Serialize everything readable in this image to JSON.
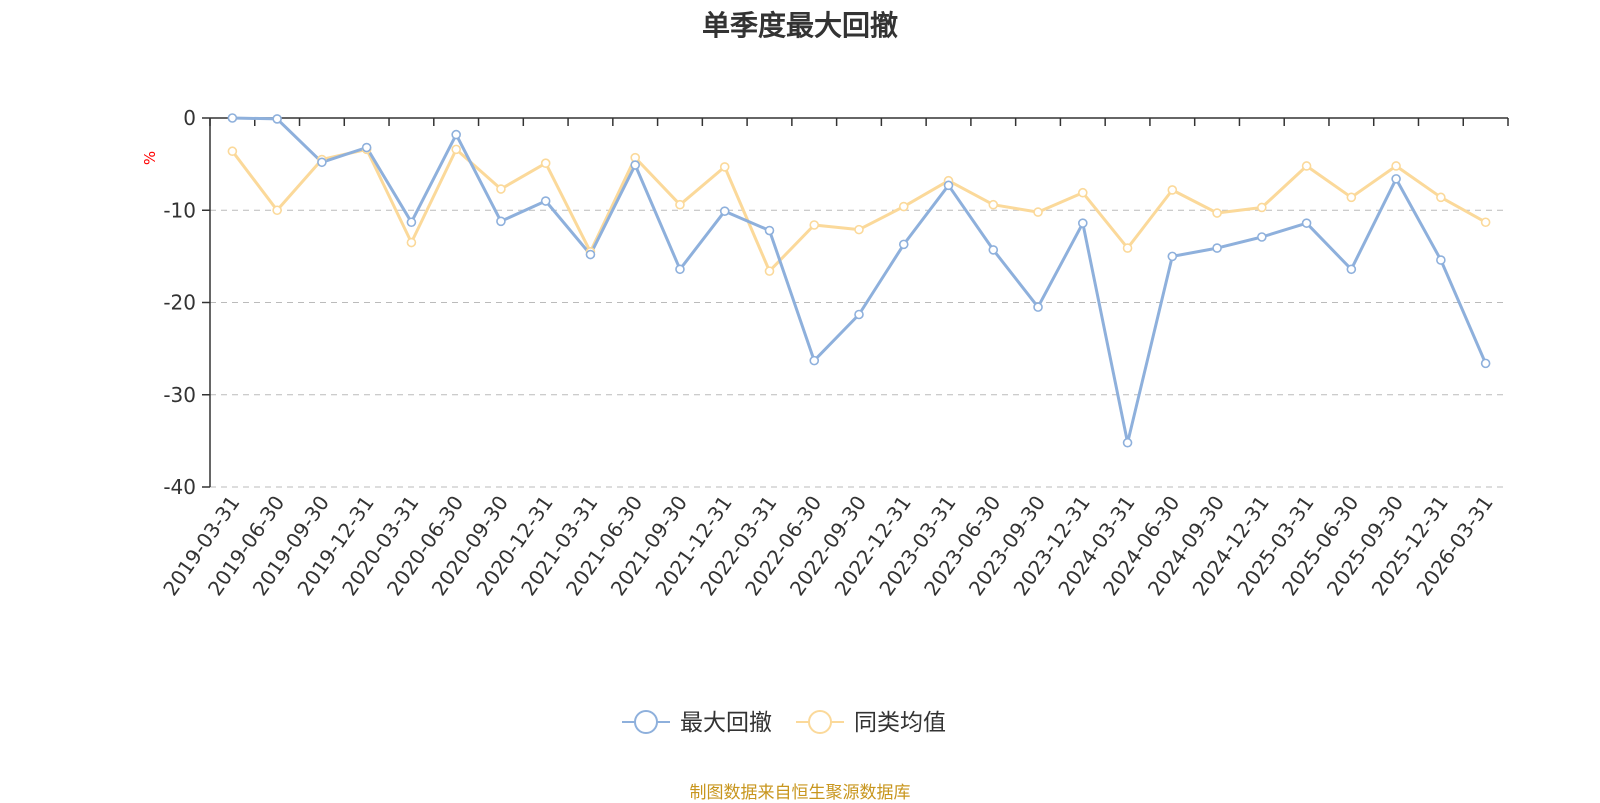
{
  "colors": {
    "series_1": "#8eb0dc",
    "series_2": "#fbd99a",
    "unit": "#ff0000",
    "source": "#c8961e",
    "grid": "#bbbbbb"
  },
  "source_text": "制图数据来自恒生聚源数据库",
  "chart_data": {
    "type": "line",
    "title": "单季度最大回撤",
    "ylabel": "%",
    "xlabel": "",
    "ylim": [
      -40,
      0
    ],
    "yticks": [
      0,
      -10,
      -20,
      -30,
      -40
    ],
    "grid": "dashed horizontal",
    "legend_position": "bottom-center",
    "categories": [
      "2019-03-31",
      "2019-06-30",
      "2019-09-30",
      "2019-12-31",
      "2020-03-31",
      "2020-06-30",
      "2020-09-30",
      "2020-12-31",
      "2021-03-31",
      "2021-06-30",
      "2021-09-30",
      "2021-12-31",
      "2022-03-31",
      "2022-06-30",
      "2022-09-30",
      "2022-12-31",
      "2023-03-31",
      "2023-06-30",
      "2023-09-30",
      "2023-12-31",
      "2024-03-31",
      "2024-06-30",
      "2024-09-30",
      "2024-12-31",
      "2025-03-31",
      "2025-06-30",
      "2025-09-30",
      "2025-12-31",
      "2026-03-31"
    ],
    "series": [
      {
        "name": "最大回撤",
        "values": [
          0,
          -0.1,
          -4.8,
          -3.2,
          -11.3,
          -1.8,
          -11.2,
          -9.0,
          -14.8,
          -5.1,
          -16.4,
          -10.1,
          -12.2,
          -26.3,
          -21.3,
          -13.7,
          -7.3,
          -14.3,
          -20.5,
          -11.4,
          -35.2,
          -15.0,
          -14.1,
          -12.9,
          -11.4,
          -16.4,
          -6.6,
          -15.4,
          -26.6
        ]
      },
      {
        "name": "同类均值",
        "values": [
          -3.6,
          -10.0,
          -4.5,
          -3.4,
          -13.5,
          -3.4,
          -7.7,
          -4.9,
          -14.5,
          -4.3,
          -9.4,
          -5.3,
          -16.6,
          -11.6,
          -12.1,
          -9.6,
          -6.8,
          -9.4,
          -10.2,
          -8.1,
          -14.1,
          -7.8,
          -10.3,
          -9.7,
          -5.2,
          -8.6,
          -5.2,
          -8.6,
          -11.3
        ]
      }
    ]
  }
}
